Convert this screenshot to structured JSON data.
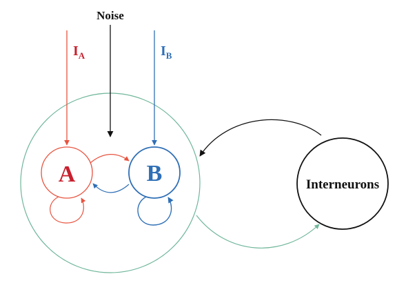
{
  "labels": {
    "noise": "Noise",
    "input_a_main": "I",
    "input_a_sub": "A",
    "input_b_main": "I",
    "input_b_sub": "B",
    "pop_a": "A",
    "pop_b": "B",
    "interneurons": "Interneurons"
  },
  "colors": {
    "pop_a": "#e8533f",
    "pop_a_text": "#c8202e",
    "pop_b": "#2f6fb6",
    "excitatory_circle": "#6fb69a",
    "interneurons": "#111111",
    "noise": "#111111"
  }
}
